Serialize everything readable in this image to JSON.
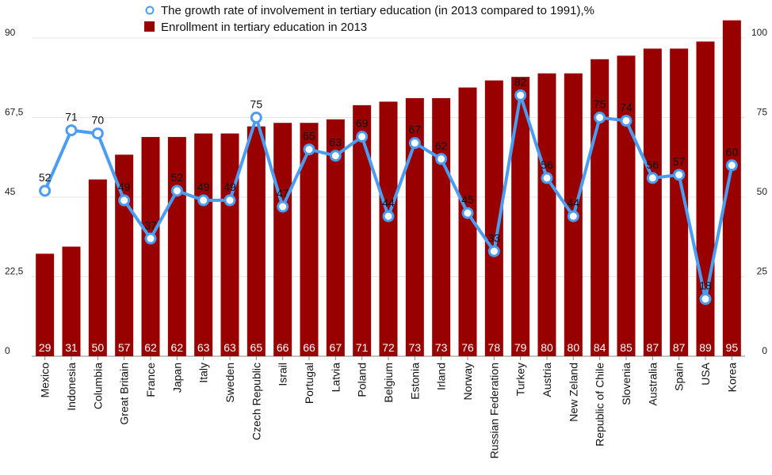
{
  "chart_data": {
    "type": "bar",
    "categories": [
      "Mexico",
      "Indonesia",
      "Columbia",
      "Great Britain",
      "France",
      "Japan",
      "Italy",
      "Sweden",
      "Czech Republic",
      "Israil",
      "Portugal",
      "Latvia",
      "Poland",
      "Belgium",
      "Estonia",
      "Irland",
      "Norway",
      "Russian Federation",
      "Turkey",
      "Austria",
      "New Zeland",
      "Republic of Chile",
      "Slovenia",
      "Australia",
      "Spain",
      "USA",
      "Korea"
    ],
    "series": [
      {
        "name": "Enrollment in tertiary education in 2013",
        "type": "bar",
        "axis": "left",
        "color": "#990000",
        "values": [
          29,
          31,
          50,
          57,
          62,
          62,
          63,
          63,
          65,
          66,
          66,
          67,
          71,
          72,
          73,
          73,
          76,
          78,
          79,
          80,
          80,
          84,
          85,
          87,
          87,
          89,
          95
        ],
        "value_labels": [
          "29",
          "31",
          "50",
          "57",
          "62",
          "62",
          "63",
          "63",
          "65",
          "66",
          "66",
          "67",
          "71",
          "72",
          "73",
          "73",
          "76",
          "78",
          "79",
          "80",
          "80",
          "84",
          "85",
          "87",
          "87",
          "89",
          "95"
        ]
      },
      {
        "name": "The growth rate of involvement in tertiary education (in 2013 compared to 1991),%",
        "type": "line",
        "axis": "right",
        "color": "#4a9df2",
        "values": [
          52,
          71,
          70,
          49,
          37,
          52,
          49,
          49,
          75,
          47,
          65,
          63,
          69,
          44,
          67,
          62,
          45,
          33,
          82,
          56,
          44,
          75,
          74,
          56,
          57,
          18,
          60
        ],
        "value_labels": [
          "52",
          "71",
          "70",
          "49",
          "37",
          "52",
          "49",
          "49",
          "75",
          "47",
          "65",
          "63",
          "69",
          "44",
          "67",
          "62",
          "45",
          "33",
          "82",
          "56",
          "44",
          "75",
          "74",
          "56",
          "57",
          "18",
          "60"
        ]
      }
    ],
    "y_left": {
      "range": [
        0,
        90
      ],
      "ticks": [
        "0",
        "22,5",
        "45",
        "67,5",
        "90"
      ],
      "tick_values": [
        0,
        22.5,
        45,
        67.5,
        90
      ]
    },
    "y_right": {
      "range": [
        0,
        100
      ],
      "ticks": [
        "0",
        "25",
        "50",
        "75",
        "100"
      ],
      "tick_values": [
        0,
        25,
        50,
        75,
        100
      ]
    },
    "legend": {
      "placement": "top"
    },
    "grid": true
  }
}
